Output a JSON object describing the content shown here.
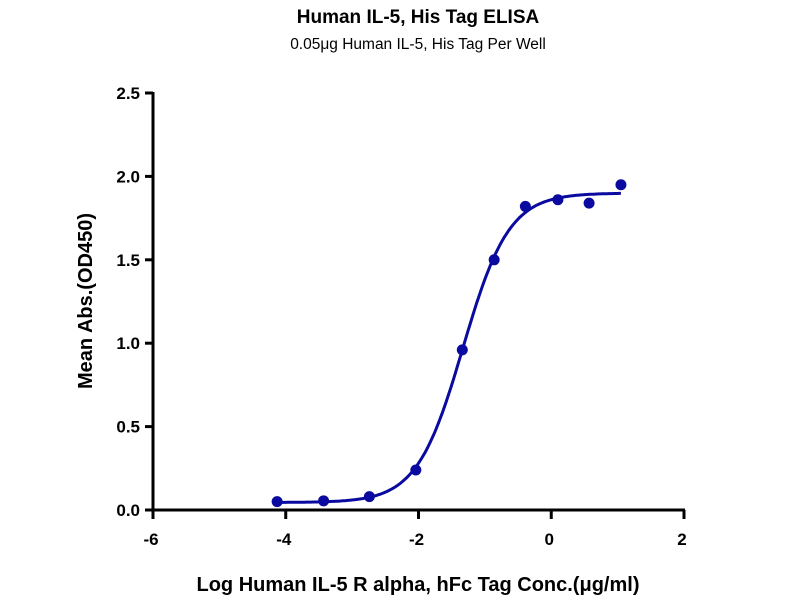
{
  "chart_data": {
    "type": "scatter",
    "title": "Human IL-5, His Tag ELISA",
    "subtitle": "0.05μg Human IL-5, His Tag Per Well",
    "xlabel": "Log Human IL-5 R alpha, hFc Tag Conc.(μg/ml)",
    "ylabel": "Mean Abs.(OD450)",
    "xlim": [
      -6,
      2
    ],
    "ylim": [
      0,
      2.5
    ],
    "xticks": [
      "-6",
      "-4",
      "-2",
      "0",
      "2"
    ],
    "yticks": [
      "0.0",
      "0.5",
      "1.0",
      "1.5",
      "2.0",
      "2.5"
    ],
    "grid": false,
    "color": "#0a0aa0",
    "series": [
      {
        "x": [
          -4.13,
          -3.43,
          -2.74,
          -2.04,
          -1.34,
          -0.86,
          -0.39,
          0.1,
          0.57,
          1.05
        ],
        "y": [
          0.05,
          0.055,
          0.08,
          0.24,
          0.96,
          1.5,
          1.82,
          1.86,
          1.84,
          1.95
        ]
      }
    ],
    "fit": {
      "model": "4PL sigmoid",
      "bottom": 0.045,
      "top": 1.9,
      "log_ec50": -1.33,
      "hill": 1.25,
      "x_range": [
        -4.13,
        1.05
      ]
    }
  }
}
